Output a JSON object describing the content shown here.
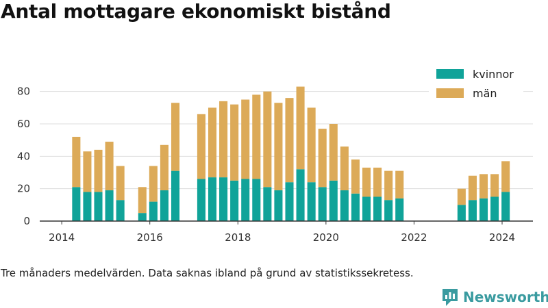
{
  "page": {
    "title": "Antal mottagare ekonomiskt bistånd",
    "note": "Tre månaders medelvärden. Data saknas ibland på grund av statistikssekretess.",
    "brand": "Newsworthy"
  },
  "colors": {
    "kvinnor": "#10a399",
    "man": "#dcaa58",
    "axis": "#333333",
    "grid": "#dddddd",
    "brand": "#3a9ba0"
  },
  "chart_data": {
    "type": "bar",
    "stacked": true,
    "title": "Antal mottagare ekonomiskt bistånd",
    "xlim": [
      2013.5,
      2024.7
    ],
    "ylim": [
      0,
      90
    ],
    "xticks": [
      2014,
      2016,
      2018,
      2020,
      2022,
      2024
    ],
    "yticks": [
      0,
      20,
      40,
      60,
      80
    ],
    "legend_position": "top-right",
    "grid": "horizontal",
    "x": [
      2014.33,
      2014.58,
      2014.83,
      2015.08,
      2015.33,
      2015.83,
      2016.08,
      2016.33,
      2016.58,
      2017.17,
      2017.42,
      2017.67,
      2017.92,
      2018.17,
      2018.42,
      2018.67,
      2018.92,
      2019.17,
      2019.42,
      2019.67,
      2019.92,
      2020.17,
      2020.42,
      2020.67,
      2020.92,
      2021.17,
      2021.42,
      2021.67,
      2023.08,
      2023.33,
      2023.58,
      2023.83,
      2024.08
    ],
    "series": [
      {
        "name": "kvinnor",
        "values": [
          21,
          18,
          18,
          19,
          13,
          5,
          12,
          19,
          31,
          26,
          27,
          27,
          25,
          26,
          26,
          21,
          19,
          24,
          32,
          24,
          21,
          25,
          19,
          17,
          15,
          15,
          13,
          14,
          10,
          13,
          14,
          15,
          18
        ]
      },
      {
        "name": "män",
        "values": [
          31,
          25,
          26,
          30,
          21,
          16,
          22,
          28,
          42,
          40,
          43,
          47,
          47,
          49,
          52,
          59,
          54,
          52,
          51,
          46,
          36,
          35,
          27,
          21,
          18,
          18,
          18,
          17,
          10,
          15,
          15,
          14,
          19
        ]
      }
    ]
  }
}
